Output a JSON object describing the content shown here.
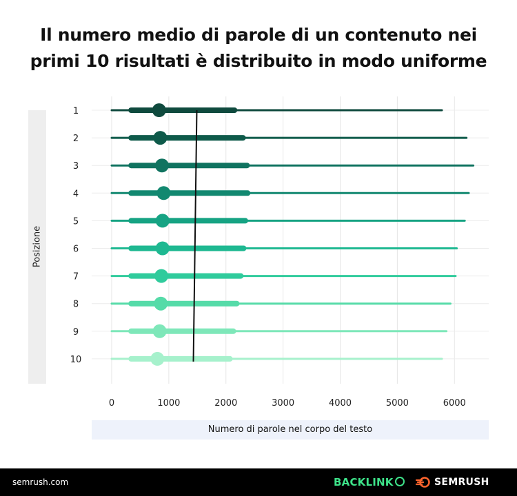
{
  "title_lines": [
    "Il numero medio di parole di un contenuto nei",
    "primi 10 risultati è distribuito in modo uniforme"
  ],
  "footer": {
    "site": "semrush.com",
    "brand1": "BACKLINK",
    "brand2": "SEMRUSH"
  },
  "colors": {
    "series": [
      "#0f4a3e",
      "#0e5a4a",
      "#107360",
      "#128870",
      "#16a383",
      "#1eb891",
      "#30cb9c",
      "#55dba8",
      "#7ee7b9",
      "#a6f1cc"
    ],
    "median_line": "#111111",
    "footer_bg": "#000000",
    "backlinko": "#3ee38a",
    "semrush_icon": "#ff642d"
  },
  "chart_data": {
    "type": "boxplot",
    "title": "Il numero medio di parole di un contenuto nei primi 10 risultati è distribuito in modo uniforme",
    "xlabel": "Numero di parole nel corpo del testo",
    "ylabel": "Posizione",
    "xlim": [
      -350,
      6600
    ],
    "x_ticks": [
      0,
      1000,
      2000,
      3000,
      4000,
      5000,
      6000
    ],
    "categories": [
      "1",
      "2",
      "3",
      "4",
      "5",
      "6",
      "7",
      "8",
      "9",
      "10"
    ],
    "series": [
      {
        "whisker_low": 0,
        "q1": 340,
        "median": 830,
        "q3": 2150,
        "whisker_high": 5780
      },
      {
        "whisker_low": 0,
        "q1": 340,
        "median": 850,
        "q3": 2300,
        "whisker_high": 6210
      },
      {
        "whisker_low": 0,
        "q1": 340,
        "median": 880,
        "q3": 2370,
        "whisker_high": 6330
      },
      {
        "whisker_low": 0,
        "q1": 340,
        "median": 910,
        "q3": 2380,
        "whisker_high": 6250
      },
      {
        "whisker_low": 0,
        "q1": 340,
        "median": 890,
        "q3": 2340,
        "whisker_high": 6180
      },
      {
        "whisker_low": 0,
        "q1": 340,
        "median": 890,
        "q3": 2310,
        "whisker_high": 6040
      },
      {
        "whisker_low": 0,
        "q1": 340,
        "median": 870,
        "q3": 2260,
        "whisker_high": 6020
      },
      {
        "whisker_low": 0,
        "q1": 340,
        "median": 860,
        "q3": 2190,
        "whisker_high": 5930
      },
      {
        "whisker_low": 0,
        "q1": 340,
        "median": 840,
        "q3": 2130,
        "whisker_high": 5860
      },
      {
        "whisker_low": 0,
        "q1": 340,
        "median": 800,
        "q3": 2070,
        "whisker_high": 5780
      }
    ],
    "mean_line": {
      "x_top": 1490,
      "x_bottom": 1430
    },
    "grid": true
  }
}
